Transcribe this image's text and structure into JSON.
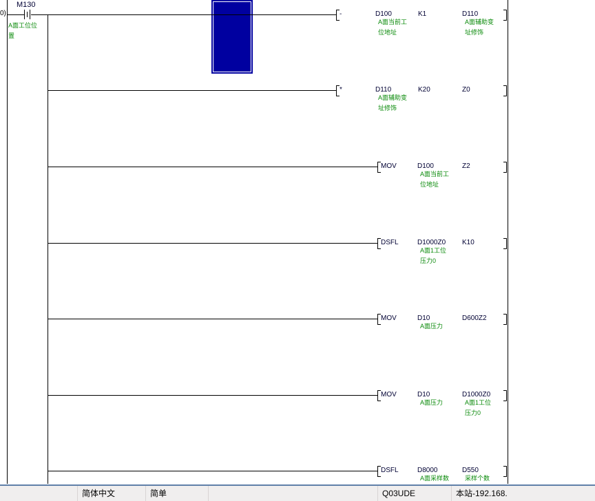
{
  "step_number": "0)",
  "contact": {
    "device": "M130",
    "comment_line1": "A面工位位",
    "comment_line2": "置"
  },
  "rungs": [
    {
      "op": "-",
      "style": "narrow",
      "operands": [
        {
          "dev": "D100",
          "comment": [
            "A面当前工",
            "位地址"
          ]
        },
        {
          "dev": "K1",
          "comment": []
        },
        {
          "dev": "D110",
          "comment": [
            "A面辅助变",
            "址修饰"
          ]
        }
      ]
    },
    {
      "op": "*",
      "style": "narrow",
      "operands": [
        {
          "dev": "D110",
          "comment": [
            "A面辅助变",
            "址修饰"
          ]
        },
        {
          "dev": "K20",
          "comment": []
        },
        {
          "dev": "Z0",
          "comment": []
        }
      ]
    },
    {
      "op": "MOV",
      "style": "wide",
      "operands": [
        {
          "dev": "D100",
          "comment": [
            "A面当前工",
            "位地址"
          ]
        },
        {
          "dev": "Z2",
          "comment": []
        }
      ]
    },
    {
      "op": "DSFL",
      "style": "wide",
      "operands": [
        {
          "dev": "D1000Z0",
          "comment": [
            "A面1工位",
            "压力0"
          ]
        },
        {
          "dev": "K10",
          "comment": []
        }
      ]
    },
    {
      "op": "MOV",
      "style": "wide",
      "operands": [
        {
          "dev": "D10",
          "comment": [
            "A面压力"
          ]
        },
        {
          "dev": "D600Z2",
          "comment": []
        }
      ]
    },
    {
      "op": "MOV",
      "style": "wide",
      "operands": [
        {
          "dev": "D10",
          "comment": [
            "A面压力"
          ]
        },
        {
          "dev": "D1000Z0",
          "comment": [
            "A面1工位",
            "压力0"
          ]
        }
      ]
    },
    {
      "op": "DSFL",
      "style": "wide",
      "operands": [
        {
          "dev": "D8000",
          "comment": [
            "A面采样数"
          ]
        },
        {
          "dev": "D550",
          "comment": [
            "采样个数"
          ]
        }
      ]
    }
  ],
  "statusbar": {
    "language": "简体中文",
    "mode": "简单",
    "cpu": "Q03UDE",
    "connection": "本站-192.168."
  },
  "colors": {
    "cursor": "#0000a0",
    "comment": "#0a8a0a",
    "cursor_line": "#ffff00"
  }
}
